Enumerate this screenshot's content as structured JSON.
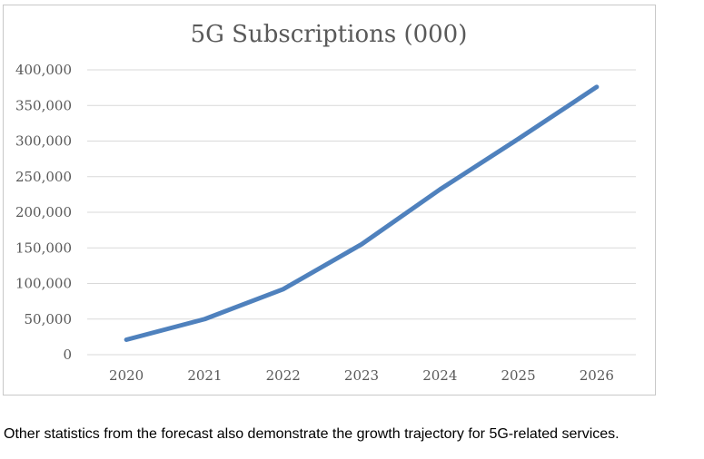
{
  "chart_data": {
    "type": "line",
    "title": "5G Subscriptions (000)",
    "xlabel": "",
    "ylabel": "",
    "categories": [
      "2020",
      "2021",
      "2022",
      "2023",
      "2024",
      "2025",
      "2026"
    ],
    "series": [
      {
        "values": [
          21000,
          50000,
          92000,
          155000,
          232000,
          303000,
          376000
        ],
        "color": "#4f81bd"
      }
    ],
    "ylim": [
      0,
      400000
    ],
    "yticks": [
      0,
      50000,
      100000,
      150000,
      200000,
      250000,
      300000,
      350000,
      400000
    ],
    "ytick_labels": [
      "0",
      "50,000",
      "100,000",
      "150,000",
      "200,000",
      "250,000",
      "300,000",
      "350,000",
      "400,000"
    ],
    "grid": true,
    "legend": "none"
  },
  "caption": "Other statistics from the forecast also demonstrate the growth trajectory for 5G-related services."
}
